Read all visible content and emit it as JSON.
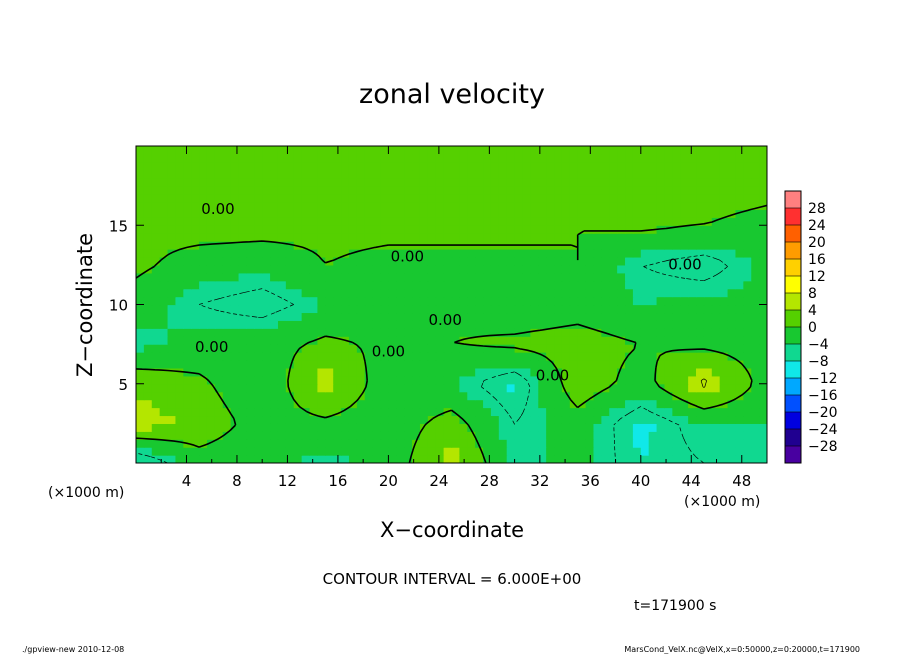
{
  "chart_data": {
    "type": "heatmap",
    "title": "zonal velocity",
    "xlabel": "X−coordinate",
    "ylabel": "Z−coordinate",
    "x_unit": "(×1000 m)",
    "y_unit": "(×1000 m)",
    "xlim": [
      0,
      50
    ],
    "ylim": [
      0,
      20
    ],
    "x_ticks": [
      "4",
      "8",
      "12",
      "16",
      "20",
      "24",
      "28",
      "32",
      "36",
      "40",
      "44",
      "48"
    ],
    "x_tick_values": [
      4,
      8,
      12,
      16,
      20,
      24,
      28,
      32,
      36,
      40,
      44,
      48
    ],
    "y_ticks": [
      "5",
      "10",
      "15"
    ],
    "y_tick_values": [
      5,
      10,
      15
    ],
    "contour_label": "0.00",
    "contour_interval_text": "CONTOUR INTERVAL = 6.000E+00",
    "time_text": "t=171900 s",
    "colorbar": {
      "levels": [
        "28",
        "24",
        "20",
        "16",
        "12",
        "8",
        "4",
        "0",
        "−4",
        "−8",
        "−12",
        "−16",
        "−20",
        "−24",
        "−28"
      ],
      "colors": [
        "#ff8080",
        "#ff3030",
        "#ff6000",
        "#ff9c00",
        "#ffd000",
        "#ffff00",
        "#b4e600",
        "#55d000",
        "#18c830",
        "#10d890",
        "#10e8e8",
        "#00a8ff",
        "#0050ff",
        "#0000e0",
        "#200090",
        "#4800a0"
      ]
    },
    "field": {
      "x": [
        0,
        5,
        10,
        15,
        20,
        25,
        30,
        35,
        40,
        45,
        50
      ],
      "z": [
        0,
        2.5,
        5,
        7.5,
        10,
        12.5,
        15,
        17.5,
        20
      ],
      "values": [
        [
          -10,
          -2,
          -3,
          -5,
          -3,
          6,
          -5,
          -3,
          -8,
          -6,
          -5
        ],
        [
          6,
          3,
          -2,
          -1,
          -3,
          2,
          -6,
          -2,
          -9,
          -4,
          -4
        ],
        [
          3,
          1,
          -4,
          6,
          -3,
          -4,
          -9,
          3,
          -2,
          7,
          -2
        ],
        [
          -5,
          -3,
          -2,
          1,
          -1,
          0,
          1,
          2,
          0,
          -1,
          -2
        ],
        [
          -2,
          -6,
          -8,
          -4,
          -2,
          -1,
          -3,
          -2,
          -4,
          -3,
          -3
        ],
        [
          1,
          -2,
          -3,
          0,
          -1,
          -2,
          -1,
          0,
          -6,
          -8,
          -3
        ],
        [
          1,
          2,
          2,
          1,
          1,
          2,
          1,
          0,
          1,
          0,
          -2
        ],
        [
          2,
          3,
          3,
          2,
          2,
          2,
          3,
          2,
          2,
          3,
          2
        ],
        [
          2,
          2,
          2,
          2,
          2,
          2,
          2,
          2,
          2,
          2,
          2
        ]
      ]
    }
  },
  "footer": {
    "program": "./gpview-new  2010-12-08",
    "source": "MarsCond_VelX.nc@VelX,x=0:50000,z=0:20000,t=171900"
  }
}
